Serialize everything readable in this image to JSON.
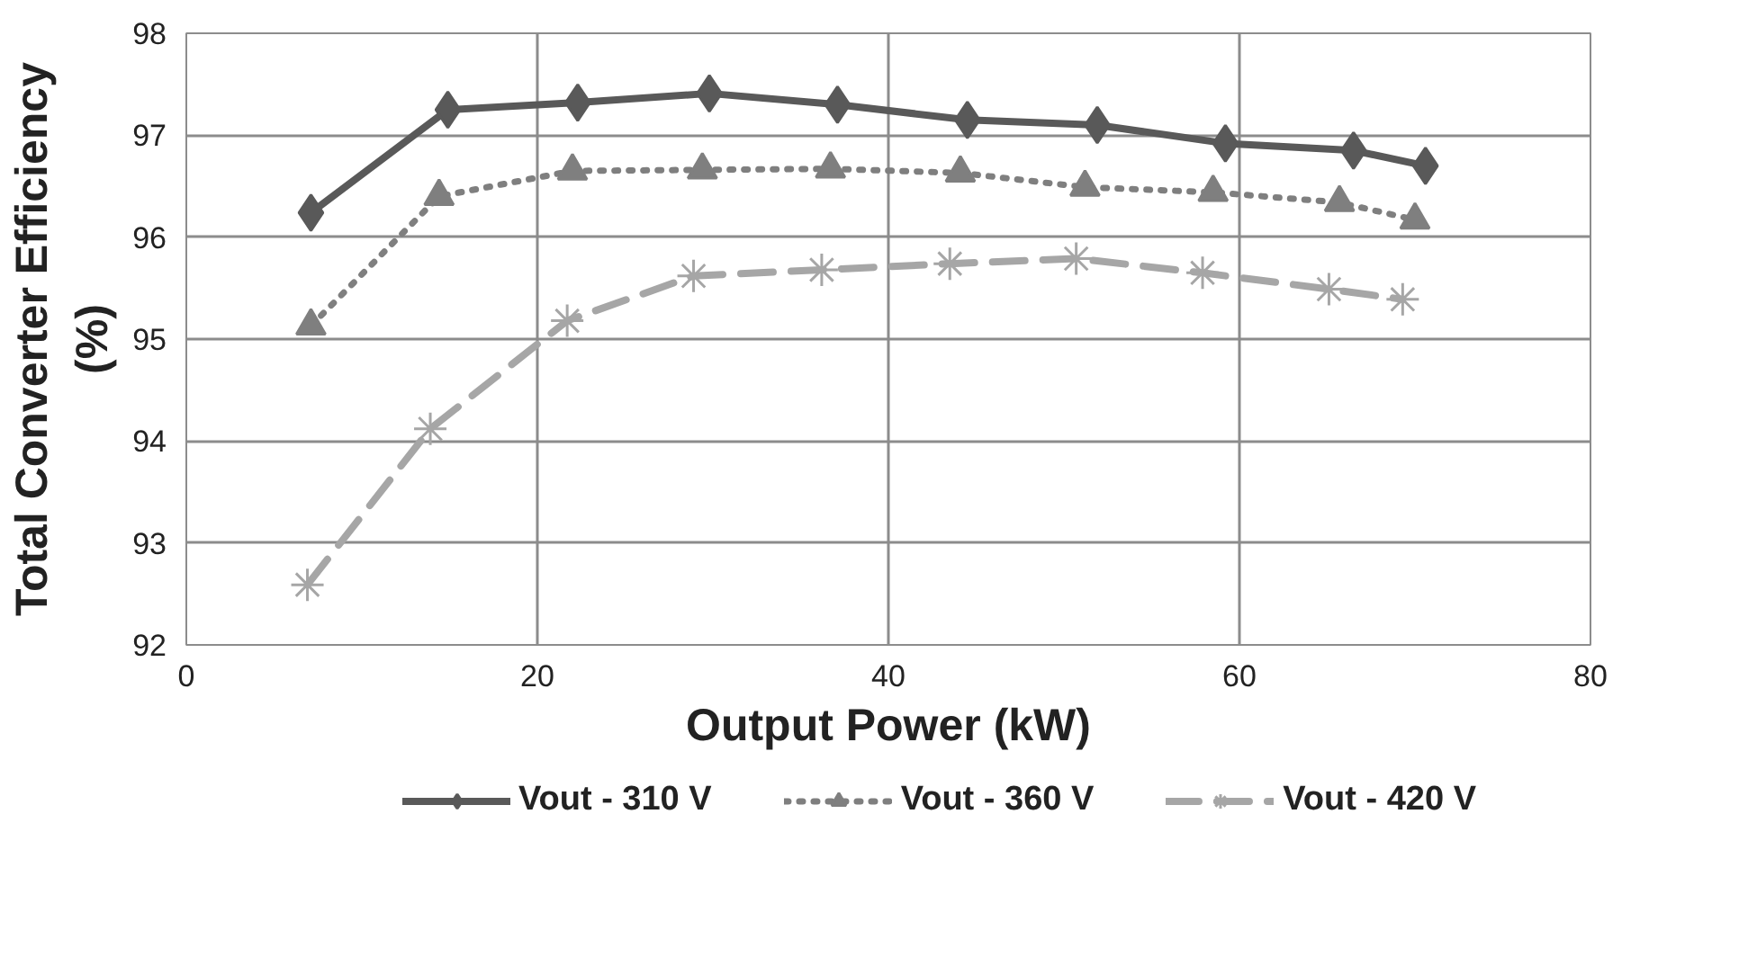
{
  "chart_data": {
    "type": "line",
    "xlabel": "Output Power (kW)",
    "ylabel": "Total Converter Efficiency\n(%)",
    "xlim": [
      0,
      80
    ],
    "xticks": [
      0,
      20,
      40,
      60,
      80
    ],
    "ylim": [
      92,
      98
    ],
    "yticks": [
      92,
      93,
      94,
      95,
      96,
      97,
      98
    ],
    "grid": true,
    "legend": "bottom",
    "series": [
      {
        "name": "Vout - 310 V",
        "color": "#595959",
        "marker": "diamond",
        "line_style": "solid",
        "x": [
          7.1,
          14.9,
          22.3,
          29.8,
          37.1,
          44.5,
          51.9,
          59.2,
          66.5,
          70.6
        ],
        "values": [
          96.24,
          97.25,
          97.32,
          97.41,
          97.3,
          97.15,
          97.1,
          96.92,
          96.85,
          96.7
        ]
      },
      {
        "name": "Vout - 360 V",
        "color": "#7f7f7f",
        "marker": "triangle",
        "line_style": "dotted",
        "x": [
          7.1,
          14.4,
          22.0,
          29.4,
          36.7,
          44.1,
          51.2,
          58.5,
          65.7,
          70.0
        ],
        "values": [
          95.13,
          96.4,
          96.65,
          96.66,
          96.67,
          96.63,
          96.49,
          96.44,
          96.34,
          96.17
        ]
      },
      {
        "name": "Vout - 420 V",
        "color": "#a6a6a6",
        "marker": "cross",
        "line_style": "dashed",
        "x": [
          6.9,
          13.9,
          21.7,
          28.9,
          36.2,
          43.5,
          50.7,
          57.9,
          65.1,
          69.3
        ],
        "values": [
          92.59,
          94.12,
          95.18,
          95.62,
          95.68,
          95.74,
          95.79,
          95.65,
          95.49,
          95.39
        ]
      }
    ]
  }
}
